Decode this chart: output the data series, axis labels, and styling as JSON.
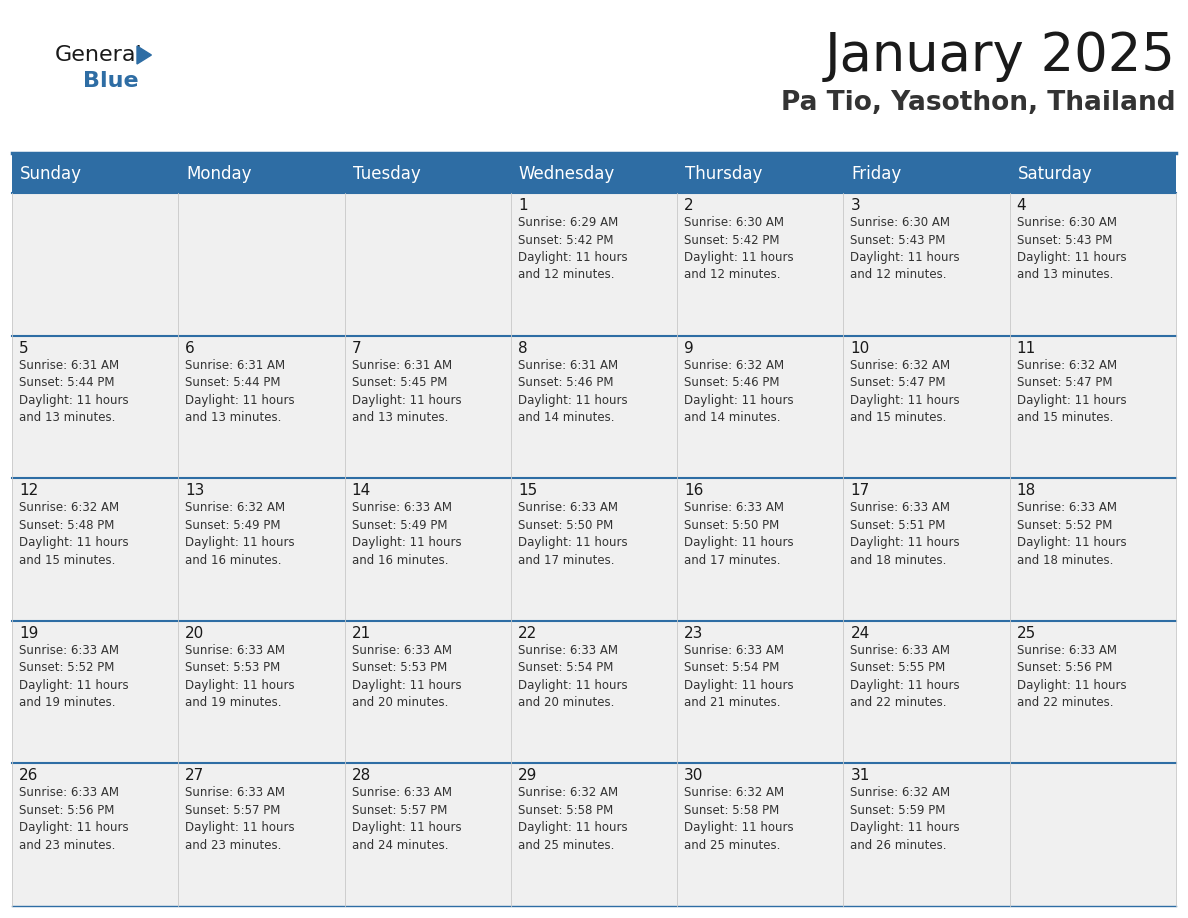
{
  "title": "January 2025",
  "subtitle": "Pa Tio, Yasothon, Thailand",
  "header_bg_color": "#2E6DA4",
  "header_text_color": "#FFFFFF",
  "cell_bg_color": "#F0F0F0",
  "border_color": "#2E6DA4",
  "border_light": "#C8C8C8",
  "title_color": "#1a1a1a",
  "subtitle_color": "#333333",
  "cell_text_color": "#333333",
  "day_num_color": "#1a1a1a",
  "logo_general_color": "#1a1a1a",
  "logo_blue_color": "#2E6DA4",
  "logo_triangle_color": "#2E6DA4",
  "day_names": [
    "Sunday",
    "Monday",
    "Tuesday",
    "Wednesday",
    "Thursday",
    "Friday",
    "Saturday"
  ],
  "days": [
    {
      "day": 1,
      "col": 3,
      "row": 0,
      "sunrise": "6:29 AM",
      "sunset": "5:42 PM",
      "daylight": "11 hours and 12 minutes."
    },
    {
      "day": 2,
      "col": 4,
      "row": 0,
      "sunrise": "6:30 AM",
      "sunset": "5:42 PM",
      "daylight": "11 hours and 12 minutes."
    },
    {
      "day": 3,
      "col": 5,
      "row": 0,
      "sunrise": "6:30 AM",
      "sunset": "5:43 PM",
      "daylight": "11 hours and 12 minutes."
    },
    {
      "day": 4,
      "col": 6,
      "row": 0,
      "sunrise": "6:30 AM",
      "sunset": "5:43 PM",
      "daylight": "11 hours and 13 minutes."
    },
    {
      "day": 5,
      "col": 0,
      "row": 1,
      "sunrise": "6:31 AM",
      "sunset": "5:44 PM",
      "daylight": "11 hours and 13 minutes."
    },
    {
      "day": 6,
      "col": 1,
      "row": 1,
      "sunrise": "6:31 AM",
      "sunset": "5:44 PM",
      "daylight": "11 hours and 13 minutes."
    },
    {
      "day": 7,
      "col": 2,
      "row": 1,
      "sunrise": "6:31 AM",
      "sunset": "5:45 PM",
      "daylight": "11 hours and 13 minutes."
    },
    {
      "day": 8,
      "col": 3,
      "row": 1,
      "sunrise": "6:31 AM",
      "sunset": "5:46 PM",
      "daylight": "11 hours and 14 minutes."
    },
    {
      "day": 9,
      "col": 4,
      "row": 1,
      "sunrise": "6:32 AM",
      "sunset": "5:46 PM",
      "daylight": "11 hours and 14 minutes."
    },
    {
      "day": 10,
      "col": 5,
      "row": 1,
      "sunrise": "6:32 AM",
      "sunset": "5:47 PM",
      "daylight": "11 hours and 15 minutes."
    },
    {
      "day": 11,
      "col": 6,
      "row": 1,
      "sunrise": "6:32 AM",
      "sunset": "5:47 PM",
      "daylight": "11 hours and 15 minutes."
    },
    {
      "day": 12,
      "col": 0,
      "row": 2,
      "sunrise": "6:32 AM",
      "sunset": "5:48 PM",
      "daylight": "11 hours and 15 minutes."
    },
    {
      "day": 13,
      "col": 1,
      "row": 2,
      "sunrise": "6:32 AM",
      "sunset": "5:49 PM",
      "daylight": "11 hours and 16 minutes."
    },
    {
      "day": 14,
      "col": 2,
      "row": 2,
      "sunrise": "6:33 AM",
      "sunset": "5:49 PM",
      "daylight": "11 hours and 16 minutes."
    },
    {
      "day": 15,
      "col": 3,
      "row": 2,
      "sunrise": "6:33 AM",
      "sunset": "5:50 PM",
      "daylight": "11 hours and 17 minutes."
    },
    {
      "day": 16,
      "col": 4,
      "row": 2,
      "sunrise": "6:33 AM",
      "sunset": "5:50 PM",
      "daylight": "11 hours and 17 minutes."
    },
    {
      "day": 17,
      "col": 5,
      "row": 2,
      "sunrise": "6:33 AM",
      "sunset": "5:51 PM",
      "daylight": "11 hours and 18 minutes."
    },
    {
      "day": 18,
      "col": 6,
      "row": 2,
      "sunrise": "6:33 AM",
      "sunset": "5:52 PM",
      "daylight": "11 hours and 18 minutes."
    },
    {
      "day": 19,
      "col": 0,
      "row": 3,
      "sunrise": "6:33 AM",
      "sunset": "5:52 PM",
      "daylight": "11 hours and 19 minutes."
    },
    {
      "day": 20,
      "col": 1,
      "row": 3,
      "sunrise": "6:33 AM",
      "sunset": "5:53 PM",
      "daylight": "11 hours and 19 minutes."
    },
    {
      "day": 21,
      "col": 2,
      "row": 3,
      "sunrise": "6:33 AM",
      "sunset": "5:53 PM",
      "daylight": "11 hours and 20 minutes."
    },
    {
      "day": 22,
      "col": 3,
      "row": 3,
      "sunrise": "6:33 AM",
      "sunset": "5:54 PM",
      "daylight": "11 hours and 20 minutes."
    },
    {
      "day": 23,
      "col": 4,
      "row": 3,
      "sunrise": "6:33 AM",
      "sunset": "5:54 PM",
      "daylight": "11 hours and 21 minutes."
    },
    {
      "day": 24,
      "col": 5,
      "row": 3,
      "sunrise": "6:33 AM",
      "sunset": "5:55 PM",
      "daylight": "11 hours and 22 minutes."
    },
    {
      "day": 25,
      "col": 6,
      "row": 3,
      "sunrise": "6:33 AM",
      "sunset": "5:56 PM",
      "daylight": "11 hours and 22 minutes."
    },
    {
      "day": 26,
      "col": 0,
      "row": 4,
      "sunrise": "6:33 AM",
      "sunset": "5:56 PM",
      "daylight": "11 hours and 23 minutes."
    },
    {
      "day": 27,
      "col": 1,
      "row": 4,
      "sunrise": "6:33 AM",
      "sunset": "5:57 PM",
      "daylight": "11 hours and 23 minutes."
    },
    {
      "day": 28,
      "col": 2,
      "row": 4,
      "sunrise": "6:33 AM",
      "sunset": "5:57 PM",
      "daylight": "11 hours and 24 minutes."
    },
    {
      "day": 29,
      "col": 3,
      "row": 4,
      "sunrise": "6:32 AM",
      "sunset": "5:58 PM",
      "daylight": "11 hours and 25 minutes."
    },
    {
      "day": 30,
      "col": 4,
      "row": 4,
      "sunrise": "6:32 AM",
      "sunset": "5:58 PM",
      "daylight": "11 hours and 25 minutes."
    },
    {
      "day": 31,
      "col": 5,
      "row": 4,
      "sunrise": "6:32 AM",
      "sunset": "5:59 PM",
      "daylight": "11 hours and 26 minutes."
    }
  ]
}
